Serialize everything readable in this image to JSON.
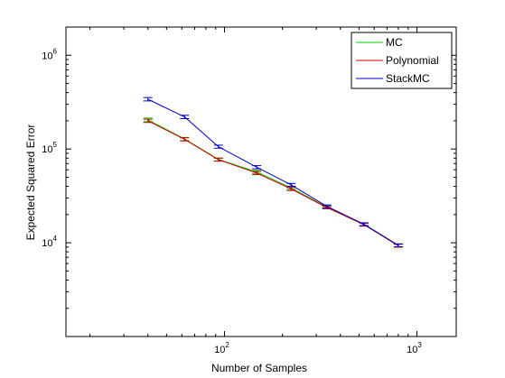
{
  "chart_data": {
    "type": "line",
    "xscale": "log",
    "yscale": "log",
    "xlabel": "Number of Samples",
    "ylabel": "Expected Squared Error",
    "xlim": [
      15,
      1600
    ],
    "ylim": [
      1000,
      2000000
    ],
    "xticks": [
      {
        "value": 100,
        "base": "10",
        "exp": "2"
      },
      {
        "value": 1000,
        "base": "10",
        "exp": "3"
      }
    ],
    "yticks": [
      {
        "value": 10000,
        "base": "10",
        "exp": "4"
      },
      {
        "value": 100000,
        "base": "10",
        "exp": "5"
      },
      {
        "value": 1000000,
        "base": "10",
        "exp": "6"
      }
    ],
    "legend_position": "top-right",
    "grid": false,
    "x": [
      40,
      62,
      93,
      147,
      222,
      340,
      530,
      800
    ],
    "series": [
      {
        "name": "MC",
        "color": "#00cc00",
        "values": [
          205000,
          128000,
          77500,
          57000,
          38500,
          24000,
          15700,
          9400
        ],
        "errors": [
          9000,
          5000,
          2800,
          2200,
          1400,
          800,
          550,
          330
        ]
      },
      {
        "name": "Polynomial",
        "color": "#cc0000",
        "values": [
          200000,
          127000,
          77000,
          55500,
          37500,
          23800,
          15600,
          9300
        ],
        "errors": [
          8000,
          5000,
          2800,
          2200,
          1400,
          800,
          550,
          330
        ]
      },
      {
        "name": "StackMC",
        "color": "#0000cc",
        "values": [
          340000,
          220000,
          106000,
          64000,
          41500,
          24500,
          15800,
          9400
        ],
        "errors": [
          14000,
          9000,
          4000,
          2500,
          1500,
          850,
          550,
          330
        ]
      }
    ]
  }
}
